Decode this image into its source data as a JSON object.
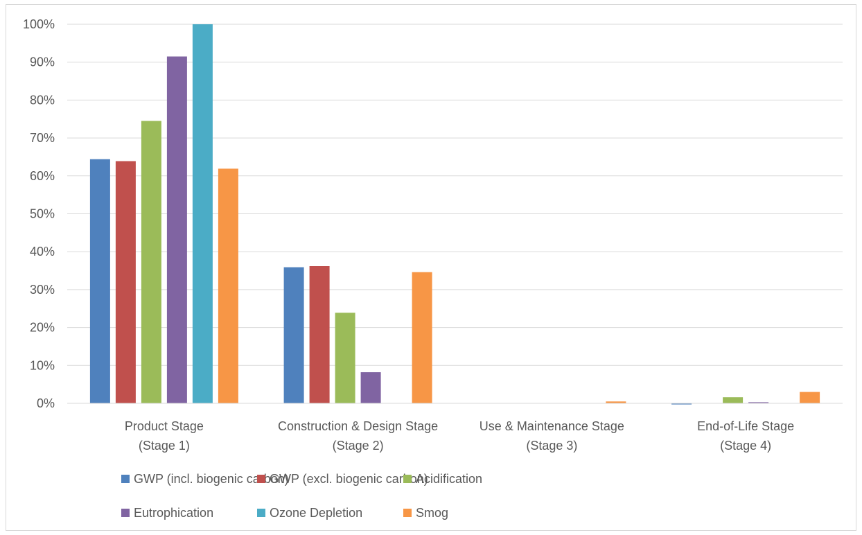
{
  "chart_data": {
    "type": "bar",
    "categories": [
      [
        "Product Stage",
        "(Stage 1)"
      ],
      [
        "Construction & Design Stage",
        "(Stage 2)"
      ],
      [
        "Use & Maintenance Stage",
        "(Stage 3)"
      ],
      [
        "End-of-Life Stage",
        "(Stage 4)"
      ]
    ],
    "series": [
      {
        "name": "GWP (incl. biogenic carbon)",
        "color": "#4F81BD",
        "values": [
          64.4,
          35.9,
          0,
          -0.3
        ]
      },
      {
        "name": "GWP (excl. biogenic carbon)",
        "color": "#C0504D",
        "values": [
          63.9,
          36.2,
          0,
          -0.1
        ]
      },
      {
        "name": "Acidification",
        "color": "#9BBB59",
        "values": [
          74.5,
          23.9,
          0,
          1.6
        ]
      },
      {
        "name": "Eutrophication",
        "color": "#8064A2",
        "values": [
          91.5,
          8.2,
          0,
          0.3
        ]
      },
      {
        "name": "Ozone Depletion",
        "color": "#4BACC6",
        "values": [
          100,
          0,
          0,
          0
        ]
      },
      {
        "name": "Smog",
        "color": "#F79646",
        "values": [
          61.9,
          34.6,
          0.5,
          3.0
        ]
      }
    ],
    "y_ticks": [
      "0%",
      "10%",
      "20%",
      "30%",
      "40%",
      "50%",
      "60%",
      "70%",
      "80%",
      "90%",
      "100%"
    ],
    "ylim": [
      0,
      100
    ],
    "grid": true,
    "legend_position": "bottom",
    "title": "",
    "xlabel": "",
    "ylabel": ""
  }
}
